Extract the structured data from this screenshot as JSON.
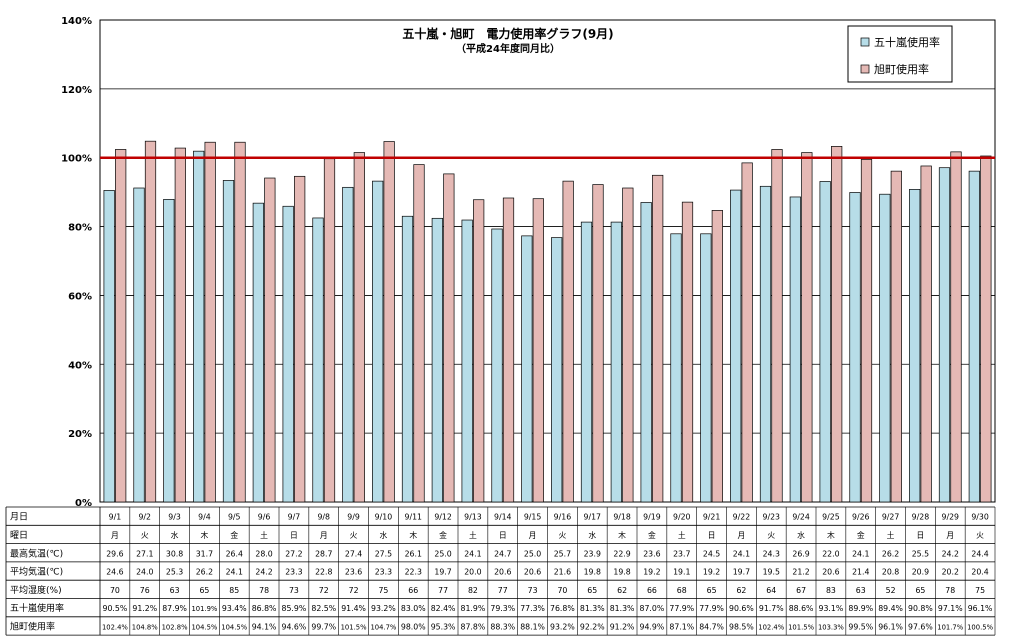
{
  "chart_data": {
    "type": "bar",
    "title": "五十嵐・旭町　電力使用率グラフ(9月)",
    "subtitle": "（平成24年度同月比）",
    "xlabel": "",
    "ylabel": "",
    "ylim": [
      0,
      140
    ],
    "y_ticks": [
      "0%",
      "20%",
      "40%",
      "60%",
      "80%",
      "100%",
      "120%",
      "140%"
    ],
    "reference_line": 100,
    "grid": true,
    "legend_position": "top-right",
    "categories": [
      "9/1",
      "9/2",
      "9/3",
      "9/4",
      "9/5",
      "9/6",
      "9/7",
      "9/8",
      "9/9",
      "9/10",
      "9/11",
      "9/12",
      "9/13",
      "9/14",
      "9/15",
      "9/16",
      "9/17",
      "9/18",
      "9/19",
      "9/20",
      "9/21",
      "9/22",
      "9/23",
      "9/24",
      "9/25",
      "9/26",
      "9/27",
      "9/28",
      "9/29",
      "9/30"
    ],
    "series": [
      {
        "name": "五十嵐使用率",
        "color": "#b7dde8",
        "values": [
          90.5,
          91.2,
          87.9,
          101.9,
          93.4,
          86.8,
          85.9,
          82.5,
          91.4,
          93.2,
          83.0,
          82.4,
          81.9,
          79.3,
          77.3,
          76.8,
          81.3,
          81.3,
          87.0,
          77.9,
          77.9,
          90.6,
          91.7,
          88.6,
          93.1,
          89.9,
          89.4,
          90.8,
          97.1,
          96.1
        ]
      },
      {
        "name": "旭町使用率",
        "color": "#e5b9b5",
        "values": [
          102.4,
          104.8,
          102.8,
          104.5,
          104.5,
          94.1,
          94.6,
          99.7,
          101.5,
          104.7,
          98.0,
          95.3,
          87.8,
          88.3,
          88.1,
          93.2,
          92.2,
          91.2,
          94.9,
          87.1,
          84.7,
          98.5,
          102.4,
          101.5,
          103.3,
          99.5,
          96.1,
          97.6,
          101.7,
          100.5
        ]
      }
    ]
  },
  "table": {
    "rows": [
      {
        "label": "月日",
        "cells": [
          "9/1",
          "9/2",
          "9/3",
          "9/4",
          "9/5",
          "9/6",
          "9/7",
          "9/8",
          "9/9",
          "9/10",
          "9/11",
          "9/12",
          "9/13",
          "9/14",
          "9/15",
          "9/16",
          "9/17",
          "9/18",
          "9/19",
          "9/20",
          "9/21",
          "9/22",
          "9/23",
          "9/24",
          "9/25",
          "9/26",
          "9/27",
          "9/28",
          "9/29",
          "9/30"
        ]
      },
      {
        "label": "曜日",
        "cells": [
          "月",
          "火",
          "水",
          "木",
          "金",
          "土",
          "日",
          "月",
          "火",
          "水",
          "木",
          "金",
          "土",
          "日",
          "月",
          "火",
          "水",
          "木",
          "金",
          "土",
          "日",
          "月",
          "火",
          "水",
          "木",
          "金",
          "土",
          "日",
          "月",
          "火"
        ]
      },
      {
        "label": "最高気温(℃)",
        "cells": [
          "29.6",
          "27.1",
          "30.8",
          "31.7",
          "26.4",
          "28.0",
          "27.2",
          "28.7",
          "27.4",
          "27.5",
          "26.1",
          "25.0",
          "24.1",
          "24.7",
          "25.0",
          "25.7",
          "23.9",
          "22.9",
          "23.6",
          "23.7",
          "24.5",
          "24.1",
          "24.3",
          "26.9",
          "22.0",
          "24.1",
          "26.2",
          "25.5",
          "24.2",
          "24.4"
        ]
      },
      {
        "label": "平均気温(℃)",
        "cells": [
          "24.6",
          "24.0",
          "25.3",
          "26.2",
          "24.1",
          "24.2",
          "23.3",
          "22.8",
          "23.6",
          "23.3",
          "22.3",
          "19.7",
          "20.0",
          "20.6",
          "20.6",
          "21.6",
          "19.8",
          "19.8",
          "19.2",
          "19.1",
          "19.2",
          "19.7",
          "19.5",
          "21.2",
          "20.6",
          "21.4",
          "20.8",
          "20.9",
          "20.2",
          "20.4"
        ]
      },
      {
        "label": "平均湿度(%)",
        "cells": [
          "70",
          "76",
          "63",
          "65",
          "85",
          "78",
          "73",
          "72",
          "72",
          "75",
          "66",
          "77",
          "82",
          "77",
          "73",
          "70",
          "65",
          "62",
          "66",
          "68",
          "65",
          "62",
          "64",
          "67",
          "83",
          "63",
          "52",
          "65",
          "78",
          "75"
        ]
      },
      {
        "label": "五十嵐使用率",
        "cells": [
          "90.5%",
          "91.2%",
          "87.9%",
          "101.9%",
          "93.4%",
          "86.8%",
          "85.9%",
          "82.5%",
          "91.4%",
          "93.2%",
          "83.0%",
          "82.4%",
          "81.9%",
          "79.3%",
          "77.3%",
          "76.8%",
          "81.3%",
          "81.3%",
          "87.0%",
          "77.9%",
          "77.9%",
          "90.6%",
          "91.7%",
          "88.6%",
          "93.1%",
          "89.9%",
          "89.4%",
          "90.8%",
          "97.1%",
          "96.1%"
        ]
      },
      {
        "label": "旭町使用率",
        "cells": [
          "102.4%",
          "104.8%",
          "102.8%",
          "104.5%",
          "104.5%",
          "94.1%",
          "94.6%",
          "99.7%",
          "101.5%",
          "104.7%",
          "98.0%",
          "95.3%",
          "87.8%",
          "88.3%",
          "88.1%",
          "93.2%",
          "92.2%",
          "91.2%",
          "94.9%",
          "87.1%",
          "84.7%",
          "98.5%",
          "102.4%",
          "101.5%",
          "103.3%",
          "99.5%",
          "96.1%",
          "97.6%",
          "101.7%",
          "100.5%"
        ]
      }
    ]
  }
}
